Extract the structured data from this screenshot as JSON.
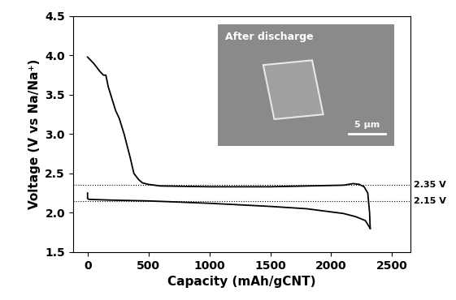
{
  "chart_data": {
    "type": "line",
    "x_label": "Capacity (mAh/gCNT)",
    "y_label": "Voltage (V vs Na/Na⁺)",
    "xlim": [
      -120,
      2650
    ],
    "xticks": [
      0,
      500,
      1000,
      1500,
      2000,
      2500
    ],
    "ylim": [
      1.5,
      4.5
    ],
    "yticks": [
      1.5,
      2.0,
      2.5,
      3.0,
      3.5,
      4.0,
      4.5
    ],
    "grid": false,
    "series": [
      {
        "color": "#000000",
        "line_style": "solid",
        "x": [
          0,
          0,
          10,
          200,
          500,
          1000,
          1500,
          1800,
          2000,
          2100,
          2200,
          2280,
          2320
        ],
        "values": [
          2.25,
          2.18,
          2.17,
          2.16,
          2.15,
          2.12,
          2.08,
          2.05,
          2.01,
          1.99,
          1.95,
          1.9,
          1.8
        ]
      },
      {
        "color": "#000000",
        "line_style": "solid",
        "x": [
          2320,
          2315,
          2300,
          2270,
          2230,
          2180,
          2100,
          1500,
          1000,
          600,
          500,
          450,
          420,
          380,
          350,
          300,
          260,
          230,
          200,
          170,
          150,
          130,
          100,
          50,
          0
        ],
        "values": [
          1.8,
          2.0,
          2.25,
          2.33,
          2.36,
          2.37,
          2.35,
          2.33,
          2.33,
          2.34,
          2.36,
          2.38,
          2.42,
          2.5,
          2.7,
          3.0,
          3.2,
          3.3,
          3.45,
          3.6,
          3.75,
          3.75,
          3.8,
          3.9,
          3.98
        ]
      }
    ],
    "reference_lines": [
      {
        "value": 2.35,
        "label": "2.35 V",
        "line_style": "dotted"
      },
      {
        "value": 2.15,
        "label": "2.15 V",
        "line_style": "dotted"
      }
    ],
    "inset": {
      "title": "After discharge",
      "scale_bar": "5 μm"
    }
  }
}
